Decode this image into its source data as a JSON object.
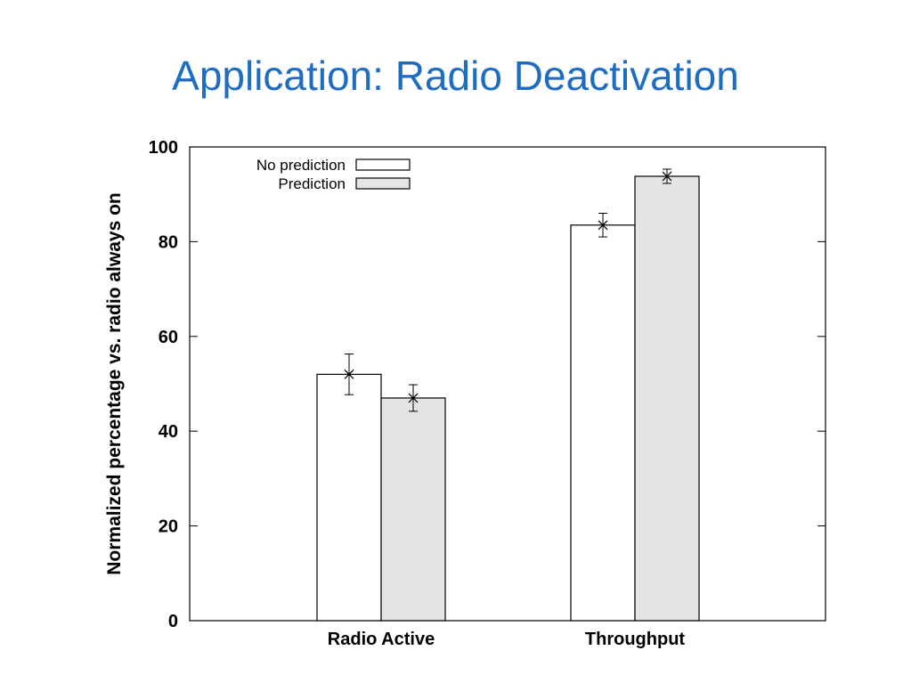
{
  "slide": {
    "title": "Application: Radio Deactivation"
  },
  "chart_data": {
    "type": "bar",
    "categories": [
      "Radio Active",
      "Throughput"
    ],
    "series": [
      {
        "name": "No prediction",
        "values": [
          52,
          83.5
        ],
        "error": [
          4.3,
          2.5
        ],
        "color": "#ffffff"
      },
      {
        "name": "Prediction",
        "values": [
          47,
          93.8
        ],
        "error": [
          2.8,
          1.5
        ],
        "color": "#e5e5e5"
      }
    ],
    "ylabel": "Normalized percentage vs. radio always on",
    "xlabel": "",
    "ylim": [
      0,
      100
    ],
    "yticks": [
      0,
      20,
      40,
      60,
      80,
      100
    ],
    "grid": false,
    "legend_position": "top-left"
  }
}
